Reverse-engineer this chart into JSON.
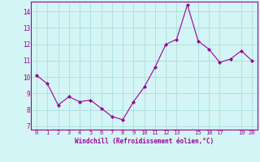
{
  "x": [
    0,
    1,
    2,
    3,
    4,
    5,
    6,
    7,
    8,
    9,
    10,
    11,
    12,
    13,
    14,
    15,
    16,
    17,
    18,
    19,
    20
  ],
  "y": [
    10.1,
    9.6,
    8.3,
    8.8,
    8.5,
    8.6,
    8.1,
    7.6,
    7.4,
    8.5,
    9.4,
    10.6,
    12.0,
    12.3,
    14.4,
    12.2,
    11.7,
    10.9,
    11.1,
    11.6,
    11.0
  ],
  "line_color": "#990099",
  "marker": "D",
  "marker_size": 2.0,
  "background_color": "#d4f5f5",
  "grid_color": "#aadddd",
  "xlabel": "Windchill (Refroidissement éolien,°C)",
  "xlabel_color": "#990099",
  "tick_color": "#990099",
  "spine_color": "#990099",
  "ylim": [
    6.8,
    14.6
  ],
  "xlim": [
    -0.5,
    20.5
  ],
  "yticks": [
    7,
    8,
    9,
    10,
    11,
    12,
    13,
    14
  ],
  "xticks": [
    0,
    1,
    2,
    3,
    4,
    5,
    6,
    7,
    8,
    9,
    10,
    11,
    12,
    13,
    15,
    16,
    17,
    19,
    20
  ],
  "xtick_labels": [
    "0",
    "1",
    "2",
    "3",
    "4",
    "5",
    "6",
    "7",
    "8",
    "9",
    "10",
    "11",
    "12",
    "13",
    "15",
    "16",
    "17",
    "19",
    "20"
  ]
}
